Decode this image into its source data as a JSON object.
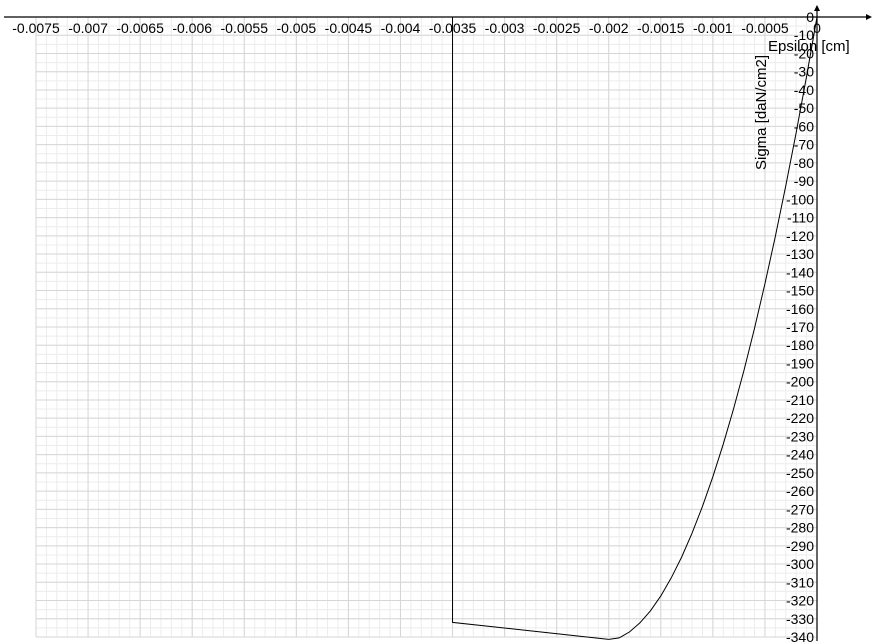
{
  "chart_data": {
    "type": "line",
    "title": "",
    "xlabel": "Epsilon [cm]",
    "ylabel": "Sigma [daN/cm2]",
    "xlim": [
      -0.0075,
      0
    ],
    "ylim": [
      -340,
      0
    ],
    "x_ticks": [
      -0.0075,
      -0.007,
      -0.0065,
      -0.006,
      -0.0055,
      -0.005,
      -0.0045,
      -0.004,
      -0.0035,
      -0.003,
      -0.0025,
      -0.002,
      -0.0015,
      -0.001,
      -0.0005,
      0
    ],
    "x_tick_labels": [
      "-0.0075",
      "-0.007",
      "-0.0065",
      "-0.006",
      "-0.0055",
      "-0.005",
      "-0.0045",
      "-0.004",
      "-0.0035",
      "-0.003",
      "-0.0025",
      "-0.002",
      "-0.0015",
      "-0.001",
      "-0.0005",
      "0"
    ],
    "y_ticks": [
      0,
      -10,
      -20,
      -30,
      -40,
      -50,
      -60,
      -70,
      -80,
      -90,
      -100,
      -110,
      -120,
      -130,
      -140,
      -150,
      -160,
      -170,
      -180,
      -190,
      -200,
      -210,
      -220,
      -230,
      -240,
      -250,
      -260,
      -270,
      -280,
      -290,
      -300,
      -310,
      -320,
      -330,
      -340
    ],
    "y_tick_labels": [
      "0",
      "-10",
      "-20",
      "-30",
      "-40",
      "-50",
      "-60",
      "-70",
      "-80",
      "-90",
      "-100",
      "-110",
      "-120",
      "-130",
      "-140",
      "-150",
      "-160",
      "-170",
      "-180",
      "-190",
      "-200",
      "-210",
      "-220",
      "-230",
      "-240",
      "-250",
      "-260",
      "-270",
      "-280",
      "-290",
      "-300",
      "-310",
      "-320",
      "-330",
      "-340"
    ],
    "grid": true,
    "series": [
      {
        "x": [
          0,
          -0.0001,
          -0.0002,
          -0.0003,
          -0.0004,
          -0.0005,
          -0.0006,
          -0.0007,
          -0.0008,
          -0.0009,
          -0.001,
          -0.0011,
          -0.0012,
          -0.0013,
          -0.0014,
          -0.0015,
          -0.0016,
          -0.0017,
          -0.0018,
          -0.0019,
          -0.002,
          -0.0035,
          -0.0035
        ],
        "y": [
          0,
          -32.5,
          -63.4,
          -92.6,
          -120.3,
          -146.3,
          -170.7,
          -193.5,
          -214.6,
          -234.2,
          -252.1,
          -268.4,
          -283.1,
          -296.2,
          -307.6,
          -317.5,
          -325.7,
          -332.2,
          -337.2,
          -340.5,
          -341.3,
          -332,
          0
        ]
      }
    ]
  }
}
